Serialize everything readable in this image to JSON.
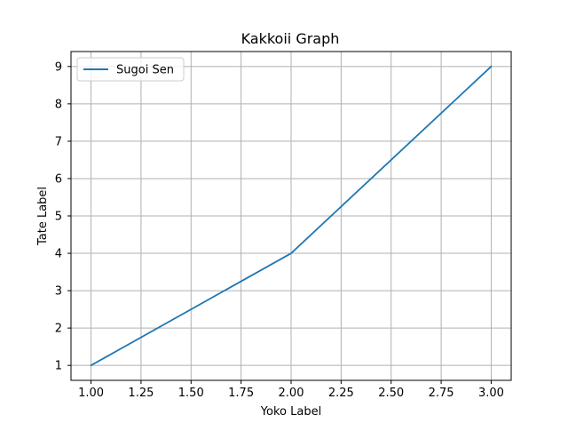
{
  "chart_data": {
    "type": "line",
    "title": "Kakkoii Graph",
    "xlabel": "Yoko Label",
    "ylabel": "Tate Label",
    "xlim": [
      0.9,
      3.1
    ],
    "ylim": [
      0.6,
      9.4
    ],
    "x_ticks": [
      "1.00",
      "1.25",
      "1.50",
      "1.75",
      "2.00",
      "2.25",
      "2.50",
      "2.75",
      "3.00"
    ],
    "y_ticks": [
      "1",
      "2",
      "3",
      "4",
      "5",
      "6",
      "7",
      "8",
      "9"
    ],
    "grid": true,
    "legend_position": "top-left",
    "series": [
      {
        "name": "Sugoi Sen",
        "x": [
          1,
          2,
          3
        ],
        "y": [
          1,
          4,
          9
        ],
        "color": "#1f77b4"
      }
    ]
  }
}
